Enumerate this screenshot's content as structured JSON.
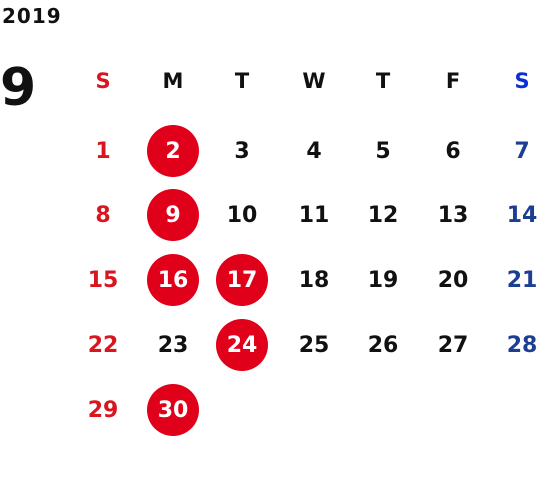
{
  "year": "2019",
  "month": "9",
  "weekdays": [
    "S",
    "M",
    "T",
    "W",
    "T",
    "F",
    "S"
  ],
  "weeks": [
    [
      {
        "day": "1",
        "marked": false
      },
      {
        "day": "2",
        "marked": true
      },
      {
        "day": "3",
        "marked": false
      },
      {
        "day": "4",
        "marked": false
      },
      {
        "day": "5",
        "marked": false
      },
      {
        "day": "6",
        "marked": false
      },
      {
        "day": "7",
        "marked": false
      }
    ],
    [
      {
        "day": "8",
        "marked": false
      },
      {
        "day": "9",
        "marked": true
      },
      {
        "day": "10",
        "marked": false
      },
      {
        "day": "11",
        "marked": false
      },
      {
        "day": "12",
        "marked": false
      },
      {
        "day": "13",
        "marked": false
      },
      {
        "day": "14",
        "marked": false
      }
    ],
    [
      {
        "day": "15",
        "marked": false
      },
      {
        "day": "16",
        "marked": true
      },
      {
        "day": "17",
        "marked": true
      },
      {
        "day": "18",
        "marked": false
      },
      {
        "day": "19",
        "marked": false
      },
      {
        "day": "20",
        "marked": false
      },
      {
        "day": "21",
        "marked": false
      }
    ],
    [
      {
        "day": "22",
        "marked": false
      },
      {
        "day": "23",
        "marked": false
      },
      {
        "day": "24",
        "marked": true
      },
      {
        "day": "25",
        "marked": false
      },
      {
        "day": "26",
        "marked": false
      },
      {
        "day": "27",
        "marked": false
      },
      {
        "day": "28",
        "marked": false
      }
    ],
    [
      {
        "day": "29",
        "marked": false
      },
      {
        "day": "30",
        "marked": true
      }
    ]
  ],
  "colors": {
    "sunday": "#d9161f",
    "saturday": "#1c3e93",
    "saturday_header": "#0b2fd6",
    "marked_circle": "#e0001a",
    "text": "#111111"
  }
}
